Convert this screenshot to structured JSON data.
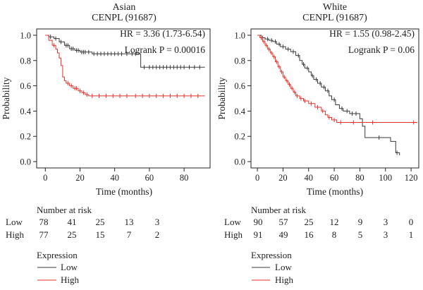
{
  "colors": {
    "low": "#3a3a3a",
    "high": "#e8312b",
    "axis": "#222222"
  },
  "chart_data": [
    {
      "type": "line",
      "title": "Asian",
      "subtitle": "CENPL (91687)",
      "xlabel": "Time (months)",
      "ylabel": "Probability",
      "xlim": [
        -5,
        95
      ],
      "ylim": [
        -0.05,
        1.05
      ],
      "xticks": [
        "0",
        "20",
        "40",
        "60",
        "80"
      ],
      "yticks": [
        "0.0",
        "0.2",
        "0.4",
        "0.6",
        "0.8",
        "1.0"
      ],
      "hr_text": "HR = 3.36 (1.73-6.54)",
      "logrank_text": "Logrank P = 0.00016",
      "grid": false,
      "series": [
        {
          "name": "Low",
          "color": "#3a3a3a",
          "steps": [
            [
              0,
              1.0
            ],
            [
              2,
              0.987
            ],
            [
              5,
              0.974
            ],
            [
              8,
              0.947
            ],
            [
              11,
              0.92
            ],
            [
              14,
              0.893
            ],
            [
              17,
              0.88
            ],
            [
              20,
              0.867
            ],
            [
              27,
              0.853
            ],
            [
              53,
              0.853
            ],
            [
              55,
              0.747
            ],
            [
              92,
              0.747
            ]
          ],
          "censors": [
            [
              3,
              0.987
            ],
            [
              6,
              0.974
            ],
            [
              9,
              0.947
            ],
            [
              12,
              0.92
            ],
            [
              13,
              0.92
            ],
            [
              15,
              0.893
            ],
            [
              16,
              0.893
            ],
            [
              18,
              0.88
            ],
            [
              19,
              0.88
            ],
            [
              21,
              0.867
            ],
            [
              22,
              0.867
            ],
            [
              23,
              0.867
            ],
            [
              25,
              0.867
            ],
            [
              28,
              0.853
            ],
            [
              30,
              0.853
            ],
            [
              32,
              0.853
            ],
            [
              34,
              0.853
            ],
            [
              36,
              0.853
            ],
            [
              38,
              0.853
            ],
            [
              40,
              0.853
            ],
            [
              42,
              0.853
            ],
            [
              44,
              0.853
            ],
            [
              47,
              0.853
            ],
            [
              50,
              0.853
            ],
            [
              52,
              0.853
            ],
            [
              57,
              0.747
            ],
            [
              60,
              0.747
            ],
            [
              62,
              0.747
            ],
            [
              64,
              0.747
            ],
            [
              66,
              0.747
            ],
            [
              68,
              0.747
            ],
            [
              70,
              0.747
            ],
            [
              72,
              0.747
            ],
            [
              74,
              0.747
            ],
            [
              76,
              0.747
            ],
            [
              78,
              0.747
            ],
            [
              80,
              0.747
            ],
            [
              83,
              0.747
            ],
            [
              86,
              0.747
            ],
            [
              89,
              0.747
            ]
          ]
        },
        {
          "name": "High",
          "color": "#e8312b",
          "steps": [
            [
              0,
              1.0
            ],
            [
              2,
              0.96
            ],
            [
              4,
              0.92
            ],
            [
              6,
              0.89
            ],
            [
              7,
              0.86
            ],
            [
              8,
              0.82
            ],
            [
              9,
              0.76
            ],
            [
              10,
              0.67
            ],
            [
              11,
              0.64
            ],
            [
              12,
              0.62
            ],
            [
              14,
              0.6
            ],
            [
              16,
              0.58
            ],
            [
              19,
              0.56
            ],
            [
              21,
              0.545
            ],
            [
              23,
              0.53
            ],
            [
              25,
              0.52
            ],
            [
              92,
              0.52
            ]
          ],
          "censors": [
            [
              5,
              0.92
            ],
            [
              13,
              0.62
            ],
            [
              15,
              0.6
            ],
            [
              17,
              0.58
            ],
            [
              18,
              0.58
            ],
            [
              20,
              0.56
            ],
            [
              22,
              0.545
            ],
            [
              24,
              0.53
            ],
            [
              27,
              0.52
            ],
            [
              31,
              0.52
            ],
            [
              35,
              0.52
            ],
            [
              39,
              0.52
            ],
            [
              43,
              0.52
            ],
            [
              47,
              0.52
            ],
            [
              52,
              0.52
            ],
            [
              56,
              0.52
            ],
            [
              60,
              0.52
            ],
            [
              64,
              0.52
            ],
            [
              68,
              0.52
            ],
            [
              72,
              0.52
            ],
            [
              76,
              0.52
            ],
            [
              80,
              0.52
            ],
            [
              84,
              0.52
            ],
            [
              88,
              0.52
            ]
          ]
        }
      ]
    },
    {
      "type": "line",
      "title": "White",
      "subtitle": "CENPL (91687)",
      "xlabel": "Time (months)",
      "ylabel": "Probability",
      "xlim": [
        -5,
        126
      ],
      "ylim": [
        -0.05,
        1.05
      ],
      "xticks": [
        "0",
        "20",
        "40",
        "60",
        "80",
        "100",
        "120"
      ],
      "yticks": [
        "0.0",
        "0.2",
        "0.4",
        "0.6",
        "0.8",
        "1.0"
      ],
      "hr_text": "HR = 1.55 (0.98-2.45)",
      "logrank_text": "Logrank P = 0.06",
      "grid": false,
      "series": [
        {
          "name": "Low",
          "color": "#3a3a3a",
          "steps": [
            [
              0,
              1.0
            ],
            [
              3,
              0.98
            ],
            [
              6,
              0.97
            ],
            [
              9,
              0.96
            ],
            [
              12,
              0.95
            ],
            [
              15,
              0.93
            ],
            [
              18,
              0.91
            ],
            [
              22,
              0.89
            ],
            [
              26,
              0.87
            ],
            [
              30,
              0.84
            ],
            [
              33,
              0.8
            ],
            [
              35,
              0.77
            ],
            [
              37,
              0.74
            ],
            [
              40,
              0.71
            ],
            [
              42,
              0.68
            ],
            [
              44,
              0.65
            ],
            [
              47,
              0.62
            ],
            [
              50,
              0.59
            ],
            [
              53,
              0.56
            ],
            [
              56,
              0.52
            ],
            [
              58,
              0.49
            ],
            [
              61,
              0.45
            ],
            [
              64,
              0.42
            ],
            [
              67,
              0.4
            ],
            [
              72,
              0.38
            ],
            [
              78,
              0.38
            ],
            [
              80,
              0.34
            ],
            [
              82,
              0.28
            ],
            [
              84,
              0.19
            ],
            [
              98,
              0.19
            ],
            [
              104,
              0.16
            ],
            [
              108,
              0.07
            ],
            [
              111,
              0.05
            ]
          ],
          "censors": [
            [
              4,
              0.98
            ],
            [
              8,
              0.97
            ],
            [
              11,
              0.96
            ],
            [
              14,
              0.95
            ],
            [
              17,
              0.93
            ],
            [
              20,
              0.91
            ],
            [
              24,
              0.89
            ],
            [
              28,
              0.87
            ],
            [
              32,
              0.84
            ],
            [
              36,
              0.77
            ],
            [
              39,
              0.74
            ],
            [
              43,
              0.68
            ],
            [
              46,
              0.65
            ],
            [
              49,
              0.62
            ],
            [
              52,
              0.59
            ],
            [
              55,
              0.56
            ],
            [
              60,
              0.49
            ],
            [
              66,
              0.42
            ],
            [
              70,
              0.4
            ],
            [
              74,
              0.38
            ],
            [
              77,
              0.38
            ],
            [
              95,
              0.19
            ],
            [
              109,
              0.07
            ]
          ]
        },
        {
          "name": "High",
          "color": "#e8312b",
          "steps": [
            [
              0,
              1.0
            ],
            [
              2,
              0.98
            ],
            [
              4,
              0.95
            ],
            [
              6,
              0.92
            ],
            [
              8,
              0.89
            ],
            [
              10,
              0.86
            ],
            [
              12,
              0.83
            ],
            [
              14,
              0.79
            ],
            [
              16,
              0.75
            ],
            [
              18,
              0.71
            ],
            [
              20,
              0.67
            ],
            [
              22,
              0.64
            ],
            [
              24,
              0.61
            ],
            [
              26,
              0.58
            ],
            [
              28,
              0.55
            ],
            [
              30,
              0.52
            ],
            [
              33,
              0.5
            ],
            [
              36,
              0.48
            ],
            [
              40,
              0.46
            ],
            [
              45,
              0.43
            ],
            [
              50,
              0.4
            ],
            [
              53,
              0.37
            ],
            [
              55,
              0.35
            ],
            [
              58,
              0.33
            ],
            [
              62,
              0.31
            ],
            [
              125,
              0.31
            ]
          ],
          "censors": [
            [
              3,
              0.98
            ],
            [
              5,
              0.95
            ],
            [
              7,
              0.92
            ],
            [
              9,
              0.89
            ],
            [
              11,
              0.86
            ],
            [
              13,
              0.83
            ],
            [
              15,
              0.79
            ],
            [
              17,
              0.75
            ],
            [
              19,
              0.71
            ],
            [
              21,
              0.67
            ],
            [
              23,
              0.64
            ],
            [
              25,
              0.61
            ],
            [
              27,
              0.58
            ],
            [
              29,
              0.55
            ],
            [
              31,
              0.52
            ],
            [
              34,
              0.5
            ],
            [
              37,
              0.48
            ],
            [
              42,
              0.46
            ],
            [
              47,
              0.43
            ],
            [
              51,
              0.4
            ],
            [
              56,
              0.35
            ],
            [
              60,
              0.33
            ],
            [
              65,
              0.31
            ],
            [
              75,
              0.31
            ],
            [
              90,
              0.31
            ],
            [
              122,
              0.31
            ]
          ]
        }
      ]
    }
  ],
  "risk_tables": [
    {
      "header": "Number at risk",
      "rows": [
        {
          "label": "Low",
          "values": [
            "78",
            "41",
            "25",
            "13",
            "3"
          ]
        },
        {
          "label": "High",
          "values": [
            "77",
            "25",
            "15",
            "7",
            "2"
          ]
        }
      ]
    },
    {
      "header": "Number at risk",
      "rows": [
        {
          "label": "Low",
          "values": [
            "90",
            "57",
            "25",
            "12",
            "9",
            "3",
            "0"
          ]
        },
        {
          "label": "High",
          "values": [
            "91",
            "49",
            "16",
            "8",
            "5",
            "3",
            "1"
          ]
        }
      ]
    }
  ],
  "legends": [
    {
      "title": "Expression",
      "items": [
        {
          "label": "Low",
          "color": "#3a3a3a"
        },
        {
          "label": "High",
          "color": "#e8312b"
        }
      ]
    },
    {
      "title": "Expression",
      "items": [
        {
          "label": "Low",
          "color": "#3a3a3a"
        },
        {
          "label": "High",
          "color": "#e8312b"
        }
      ]
    }
  ]
}
